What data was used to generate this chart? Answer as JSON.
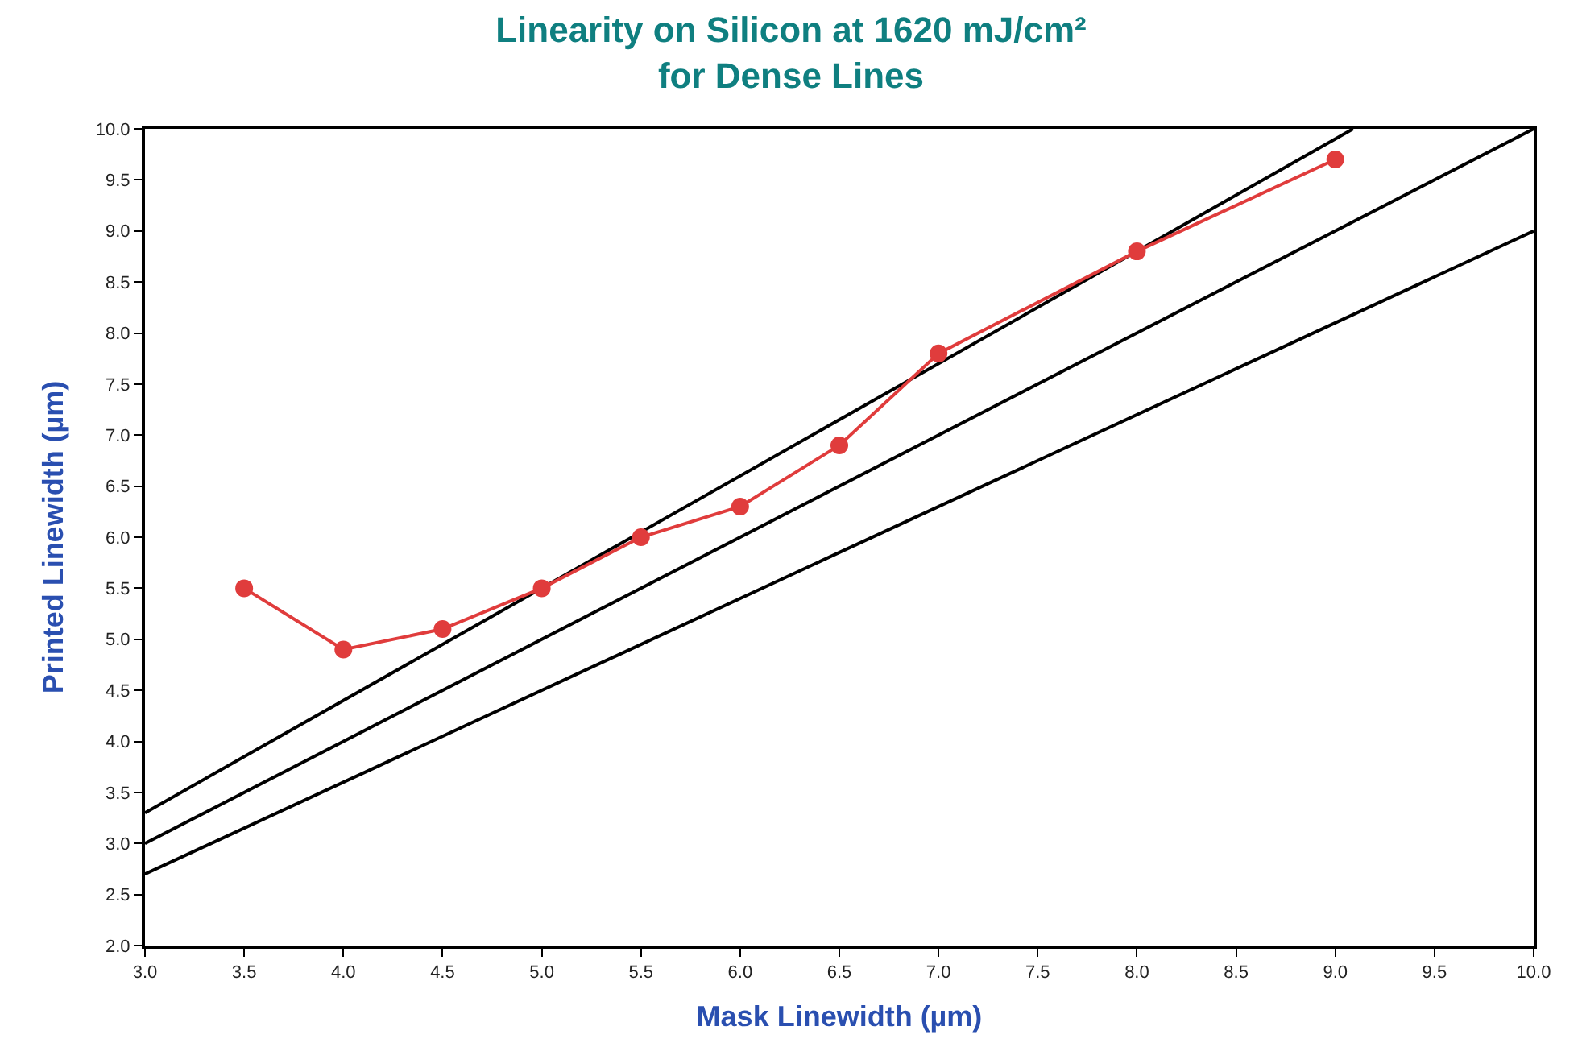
{
  "chart_data": {
    "type": "line",
    "title": "Linearity on Silicon at 1620 mJ/cm²\nfor Dense Lines",
    "xlabel": "Mask Linewidth (µm)",
    "ylabel": "Printed Linewidth (µm)",
    "xlim": [
      3.0,
      10.0
    ],
    "xticks": [
      {
        "value": 3.0,
        "label": "3.0"
      },
      {
        "value": 3.5,
        "label": "3.5"
      },
      {
        "value": 4.0,
        "label": "4.0"
      },
      {
        "value": 4.5,
        "label": "4.5"
      },
      {
        "value": 5.0,
        "label": "5.0"
      },
      {
        "value": 5.5,
        "label": "5.5"
      },
      {
        "value": 6.0,
        "label": "6.0"
      },
      {
        "value": 6.5,
        "label": "6.5"
      },
      {
        "value": 7.0,
        "label": "7.0"
      },
      {
        "value": 7.5,
        "label": "7.5"
      },
      {
        "value": 8.0,
        "label": "8.0"
      },
      {
        "value": 8.5,
        "label": "8.5"
      },
      {
        "value": 9.0,
        "label": "9.0"
      },
      {
        "value": 9.5,
        "label": "9.5"
      },
      {
        "value": 10.0,
        "label": "10.0"
      }
    ],
    "ylim": [
      2.0,
      10.0
    ],
    "yticks": [
      {
        "value": 2.0,
        "label": "2.0"
      },
      {
        "value": 2.5,
        "label": "2.5"
      },
      {
        "value": 3.0,
        "label": "3.0"
      },
      {
        "value": 3.5,
        "label": "3.5"
      },
      {
        "value": 4.0,
        "label": "4.0"
      },
      {
        "value": 4.5,
        "label": "4.5"
      },
      {
        "value": 5.0,
        "label": "5.0"
      },
      {
        "value": 5.5,
        "label": "5.5"
      },
      {
        "value": 6.0,
        "label": "6.0"
      },
      {
        "value": 6.5,
        "label": "6.5"
      },
      {
        "value": 7.0,
        "label": "7.0"
      },
      {
        "value": 7.5,
        "label": "7.5"
      },
      {
        "value": 8.0,
        "label": "8.0"
      },
      {
        "value": 8.5,
        "label": "8.5"
      },
      {
        "value": 9.0,
        "label": "9.0"
      },
      {
        "value": 9.5,
        "label": "9.5"
      },
      {
        "value": 10.0,
        "label": "10.0"
      }
    ],
    "series": [
      {
        "color": "#000000",
        "marker": "none",
        "x": [
          3.0,
          9.09
        ],
        "values": [
          3.3,
          10.0
        ]
      },
      {
        "color": "#000000",
        "marker": "none",
        "x": [
          3.0,
          10.0
        ],
        "values": [
          3.0,
          10.0
        ]
      },
      {
        "color": "#000000",
        "marker": "none",
        "x": [
          3.0,
          10.0
        ],
        "values": [
          2.7,
          9.0
        ]
      },
      {
        "color": "#e03c3c",
        "marker": "circle",
        "x": [
          3.5,
          4.0,
          4.5,
          5.0,
          5.5,
          6.0,
          6.5,
          7.0,
          8.0,
          9.0
        ],
        "values": [
          5.5,
          4.9,
          5.1,
          5.5,
          6.0,
          6.3,
          6.9,
          7.8,
          8.8,
          9.7
        ]
      }
    ]
  }
}
